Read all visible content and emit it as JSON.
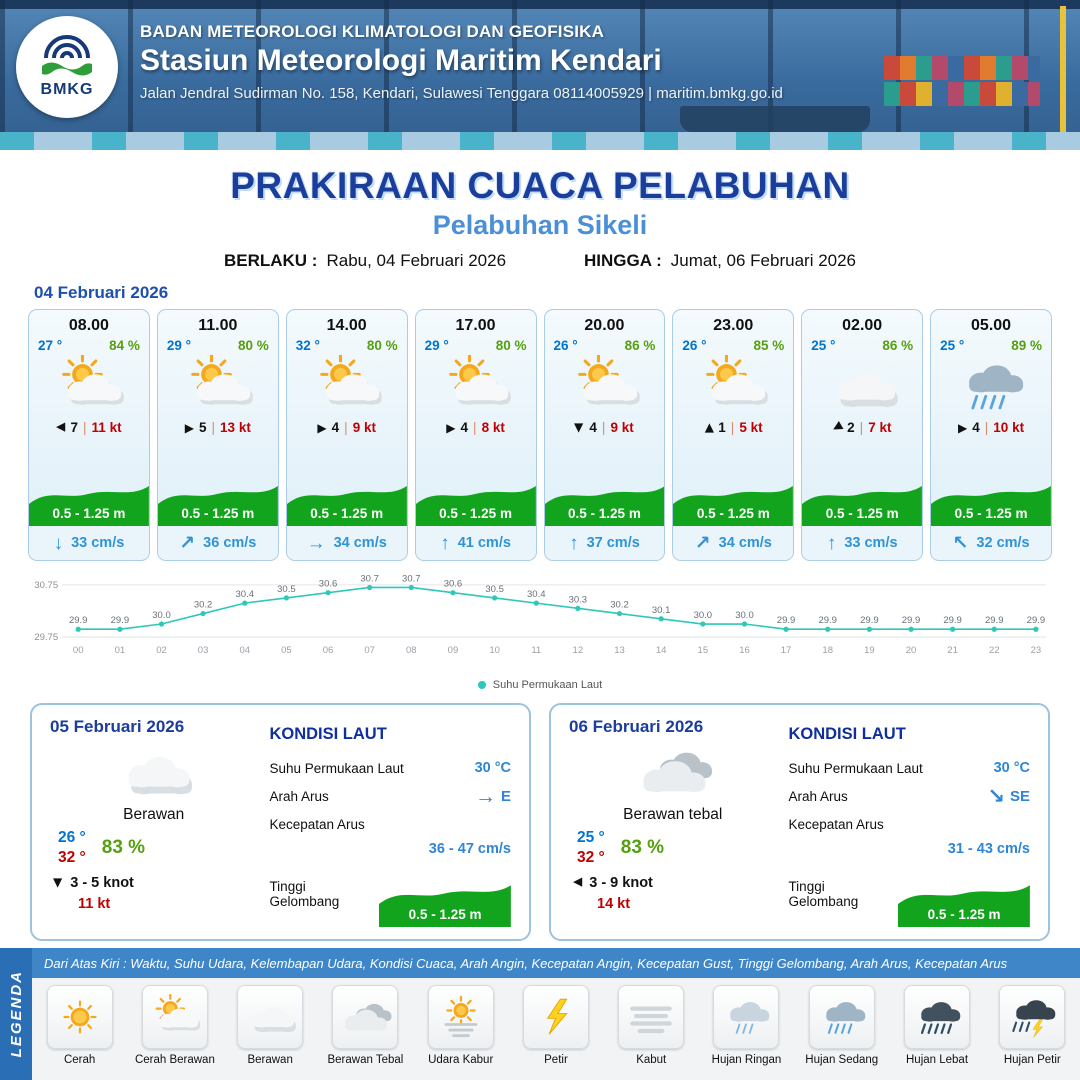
{
  "colors": {
    "title_blue": "#1b3e9c",
    "subtitle_blue": "#4b90d6",
    "temp_blue": "#0073cf",
    "hum_green": "#55a00e",
    "gust_red": "#c00000",
    "wave_green": "#12a41c",
    "current_blue": "#2f94d6",
    "chart_teal": "#2ec8b8",
    "legend_bar": "#3f86c9",
    "legend_side": "#2a6fb5"
  },
  "header": {
    "logo_text": "BMKG",
    "org": "BADAN METEOROLOGI KLIMATOLOGI DAN GEOFISIKA",
    "station": "Stasiun Meteorologi Maritim Kendari",
    "address": "Jalan Jendral Sudirman No. 158, Kendari, Sulawesi Tenggara  08114005929 | maritim.bmkg.go.id"
  },
  "title": {
    "heading": "PRAKIRAAN CUACA PELABUHAN",
    "subheading": "Pelabuhan Sikeli",
    "berlaku_label": "BERLAKU :",
    "berlaku_value": "Rabu, 04 Februari 2026",
    "hingga_label": "HINGGA :",
    "hingga_value": "Jumat, 06 Februari 2026"
  },
  "forecast": {
    "date_label": "04 Februari 2026",
    "wind_sep": "|",
    "cards": [
      {
        "time": "08.00",
        "temp": "27 °",
        "humidity": "84 %",
        "icon": "cerah-berawan",
        "wind_rot": 180,
        "wind_num": "7",
        "wind_gust": "11 kt",
        "wave": "0.5 - 1.25 m",
        "current_arrow": "↓",
        "current": "33 cm/s"
      },
      {
        "time": "11.00",
        "temp": "29 °",
        "humidity": "80 %",
        "icon": "cerah-berawan",
        "wind_rot": 0,
        "wind_num": "5",
        "wind_gust": "13 kt",
        "wave": "0.5 - 1.25 m",
        "current_arrow": "↗",
        "current": "36 cm/s"
      },
      {
        "time": "14.00",
        "temp": "32 °",
        "humidity": "80 %",
        "icon": "cerah-berawan",
        "wind_rot": 0,
        "wind_num": "4",
        "wind_gust": "9 kt",
        "wave": "0.5 - 1.25 m",
        "current_arrow": "→",
        "current": "34 cm/s"
      },
      {
        "time": "17.00",
        "temp": "29 °",
        "humidity": "80 %",
        "icon": "cerah-berawan",
        "wind_rot": 0,
        "wind_num": "4",
        "wind_gust": "8 kt",
        "wave": "0.5 - 1.25 m",
        "current_arrow": "↑",
        "current": "41 cm/s"
      },
      {
        "time": "20.00",
        "temp": "26 °",
        "humidity": "86 %",
        "icon": "cerah-berawan",
        "wind_rot": 90,
        "wind_num": "4",
        "wind_gust": "9 kt",
        "wave": "0.5 - 1.25 m",
        "current_arrow": "↑",
        "current": "37 cm/s"
      },
      {
        "time": "23.00",
        "temp": "26 °",
        "humidity": "85 %",
        "icon": "cerah-berawan",
        "wind_rot": 270,
        "wind_num": "1",
        "wind_gust": "5 kt",
        "wave": "0.5 - 1.25 m",
        "current_arrow": "↗",
        "current": "34 cm/s"
      },
      {
        "time": "02.00",
        "temp": "25 °",
        "humidity": "86 %",
        "icon": "berawan",
        "wind_rot": 150,
        "wind_num": "2",
        "wind_gust": "7 kt",
        "wave": "0.5 - 1.25 m",
        "current_arrow": "↑",
        "current": "33 cm/s"
      },
      {
        "time": "05.00",
        "temp": "25 °",
        "humidity": "89 %",
        "icon": "hujan-sedang",
        "wind_rot": 0,
        "wind_num": "4",
        "wind_gust": "10 kt",
        "wave": "0.5 - 1.25 m",
        "current_arrow": "↖",
        "current": "32 cm/s"
      }
    ]
  },
  "chart_data": {
    "type": "line",
    "series": [
      {
        "name": "Suhu Permukaan Laut",
        "values": [
          29.9,
          29.9,
          30.0,
          30.2,
          30.4,
          30.5,
          30.6,
          30.7,
          30.7,
          30.6,
          30.5,
          30.4,
          30.3,
          30.2,
          30.1,
          30.0,
          30.0,
          29.9,
          29.9,
          29.9,
          29.9,
          29.9,
          29.9,
          29.9
        ]
      }
    ],
    "x_labels": [
      "00",
      "01",
      "02",
      "03",
      "04",
      "05",
      "06",
      "07",
      "08",
      "09",
      "10",
      "11",
      "12",
      "13",
      "14",
      "15",
      "16",
      "17",
      "18",
      "19",
      "20",
      "21",
      "22",
      "23"
    ],
    "ylim": [
      29.75,
      30.75
    ],
    "y_ticks": [
      "30.75",
      "29.75"
    ],
    "legend": "Suhu Permukaan Laut",
    "legend_position": "bottom",
    "grid": true,
    "line_color": "#2ec8b8"
  },
  "day_cards": [
    {
      "date": "05 Februari 2026",
      "icon": "berawan",
      "condition": "Berawan",
      "temp_min": "26 °",
      "temp_max": "32 °",
      "humidity": "83 %",
      "wind_rot": 90,
      "wind": "3  - 5 knot",
      "gust": "11 kt",
      "sea": {
        "title": "KONDISI LAUT",
        "sst_label": "Suhu Permukaan Laut",
        "sst": "30 °C",
        "dir_label": "Arah Arus",
        "dir_arrow": "→",
        "dir": "E",
        "speed_label": "Kecepatan Arus",
        "speed": "36 - 47 cm/s",
        "wave_label": "Tinggi Gelombang",
        "wave": "0.5 - 1.25 m"
      }
    },
    {
      "date": "06 Februari 2026",
      "icon": "berawan-tebal",
      "condition": "Berawan tebal",
      "temp_min": "25 °",
      "temp_max": "32 °",
      "humidity": "83 %",
      "wind_rot": 180,
      "wind": "3  - 9 knot",
      "gust": "14 kt",
      "sea": {
        "title": "KONDISI LAUT",
        "sst_label": "Suhu Permukaan Laut",
        "sst": "30 °C",
        "dir_arrow": "↘",
        "dir_label": "Arah Arus",
        "dir": "SE",
        "speed_label": "Kecepatan Arus",
        "speed": "31 - 43 cm/s",
        "wave_label": "Tinggi Gelombang",
        "wave": "0.5 - 1.25 m"
      }
    }
  ],
  "legend": {
    "side_label": "LEGENDA",
    "note": "Dari Atas Kiri : Waktu, Suhu Udara, Kelembapan Udara, Kondisi Cuaca, Arah Angin, Kecepatan Angin, Kecepatan Gust, Tinggi Gelombang, Arah Arus, Kecepatan Arus",
    "items": [
      {
        "label": "Cerah",
        "icon": "cerah"
      },
      {
        "label": "Cerah Berawan",
        "icon": "cerah-berawan"
      },
      {
        "label": "Berawan",
        "icon": "berawan"
      },
      {
        "label": "Berawan Tebal",
        "icon": "berawan-tebal"
      },
      {
        "label": "Udara Kabur",
        "icon": "udara-kabur"
      },
      {
        "label": "Petir",
        "icon": "petir"
      },
      {
        "label": "Kabut",
        "icon": "kabut"
      },
      {
        "label": "Hujan Ringan",
        "icon": "hujan-ringan"
      },
      {
        "label": "Hujan Sedang",
        "icon": "hujan-sedang"
      },
      {
        "label": "Hujan Lebat",
        "icon": "hujan-lebat"
      },
      {
        "label": "Hujan Petir",
        "icon": "hujan-petir"
      }
    ]
  }
}
